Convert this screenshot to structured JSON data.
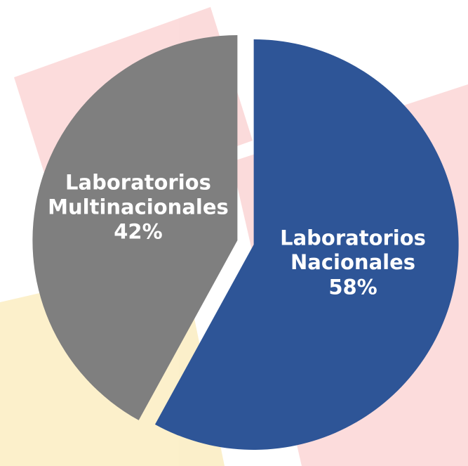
{
  "chart_data": {
    "type": "pie",
    "categories": [
      "Laboratorios Nacionales",
      "Laboratorios Multinacionales"
    ],
    "values": [
      58,
      42
    ],
    "value_labels": [
      "58%",
      "42%"
    ],
    "colors": [
      "#2e5597",
      "#7f7f7f"
    ]
  }
}
